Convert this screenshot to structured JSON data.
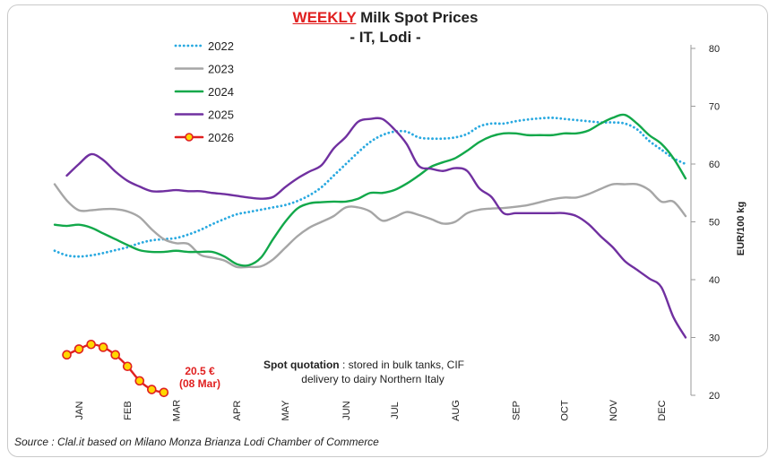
{
  "header": {
    "title_emph": "WEEKLY",
    "title_rest": " Milk Spot Prices",
    "subtitle": "- IT, Lodi -"
  },
  "source": "Source : Clal.it based on Milano Monza Brianza Lodi Chamber of Commerce",
  "annotations": {
    "spot_bold": "Spot quotation",
    "spot_rest": " : stored in bulk tanks, CIF",
    "spot_line2": "delivery to dairy Northern Italy",
    "last_value": "20.5 €",
    "last_date": "(08 Mar)"
  },
  "colors": {
    "2022": "#29a9e0",
    "2023": "#a6a6a6",
    "2024": "#12a84a",
    "2025": "#7030a0",
    "2026": "#e02020",
    "2026_marker_fill": "#ffd700",
    "annotation_red": "#e02020"
  },
  "chart_data": {
    "type": "line",
    "title": "WEEKLY Milk Spot Prices - IT, Lodi -",
    "ylabel": "EUR/100 kg",
    "ylim": [
      20,
      80
    ],
    "yticks": [
      20,
      30,
      40,
      50,
      60,
      70,
      80
    ],
    "y_axis_position": "right",
    "xlim": [
      0,
      52
    ],
    "x_tick_labels": [
      "JAN",
      "FEB",
      "MAR",
      "APR",
      "MAY",
      "JUN",
      "JUL",
      "AUG",
      "SEP",
      "OCT",
      "NOV",
      "DEC"
    ],
    "x_tick_weeks": [
      2,
      6,
      10,
      15,
      19,
      24,
      28,
      33,
      38,
      42,
      46,
      50
    ],
    "legend_position": "top-left",
    "grid": false,
    "series": [
      {
        "name": "2022",
        "style": "dotted",
        "x": [
          0,
          1,
          2,
          3,
          4,
          5,
          6,
          7,
          8,
          9,
          10,
          11,
          12,
          13,
          14,
          15,
          16,
          17,
          18,
          19,
          20,
          21,
          22,
          23,
          24,
          25,
          26,
          27,
          28,
          29,
          30,
          31,
          32,
          33,
          34,
          35,
          36,
          37,
          38,
          39,
          40,
          41,
          42,
          43,
          44,
          45,
          46,
          47,
          48,
          49,
          50,
          51,
          52
        ],
        "y": [
          45,
          44.2,
          44,
          44.2,
          44.6,
          45.1,
          45.6,
          46.3,
          46.8,
          47,
          47.2,
          47.8,
          48.6,
          49.6,
          50.5,
          51.3,
          51.7,
          52.1,
          52.5,
          52.9,
          53.6,
          54.6,
          56,
          58,
          60,
          62,
          63.8,
          65,
          65.6,
          65.6,
          64.6,
          64.4,
          64.4,
          64.6,
          65.2,
          66.5,
          67,
          67,
          67.4,
          67.7,
          67.9,
          68,
          67.8,
          67.6,
          67.4,
          67.2,
          67.2,
          67,
          66,
          64,
          62.5,
          61,
          60
        ]
      },
      {
        "name": "2023",
        "style": "solid",
        "x": [
          0,
          1,
          2,
          3,
          4,
          5,
          6,
          7,
          8,
          9,
          10,
          11,
          12,
          13,
          14,
          15,
          16,
          17,
          18,
          19,
          20,
          21,
          22,
          23,
          24,
          25,
          26,
          27,
          28,
          29,
          30,
          31,
          32,
          33,
          34,
          35,
          36,
          37,
          38,
          39,
          40,
          41,
          42,
          43,
          44,
          45,
          46,
          47,
          48,
          49,
          50,
          51,
          52
        ],
        "y": [
          56.5,
          53.7,
          52,
          52,
          52.2,
          52.2,
          51.8,
          50.8,
          48.7,
          47,
          46.3,
          46.2,
          44.3,
          43.8,
          43.3,
          42.2,
          42.2,
          42.3,
          43.5,
          45.5,
          47.5,
          49,
          50,
          51,
          52.5,
          52.5,
          51.8,
          50.2,
          50.8,
          51.7,
          51.2,
          50.5,
          49.7,
          50,
          51.5,
          52.1,
          52.3,
          52.4,
          52.6,
          52.9,
          53.4,
          53.9,
          54.2,
          54.2,
          54.8,
          55.7,
          56.5,
          56.5,
          56.5,
          55.5,
          53.5,
          53.5,
          51
        ]
      },
      {
        "name": "2024",
        "style": "solid",
        "x": [
          0,
          1,
          2,
          3,
          4,
          5,
          6,
          7,
          8,
          9,
          10,
          11,
          12,
          13,
          14,
          15,
          16,
          17,
          18,
          19,
          20,
          21,
          22,
          23,
          24,
          25,
          26,
          27,
          28,
          29,
          30,
          31,
          32,
          33,
          34,
          35,
          36,
          37,
          38,
          39,
          40,
          41,
          42,
          43,
          44,
          45,
          46,
          47,
          48,
          49,
          50,
          51,
          52
        ],
        "y": [
          49.5,
          49.3,
          49.5,
          49,
          48,
          47,
          46,
          45.1,
          44.8,
          44.8,
          45,
          44.8,
          44.8,
          44.8,
          44,
          42.7,
          42.5,
          43.8,
          47,
          50,
          52.3,
          53.2,
          53.4,
          53.5,
          53.5,
          54,
          55,
          55,
          55.5,
          56.6,
          58,
          59.5,
          60.3,
          61,
          62.3,
          63.8,
          64.8,
          65.3,
          65.3,
          65,
          65,
          65,
          65.3,
          65.3,
          65.8,
          67,
          68,
          68.5,
          67,
          65,
          63.5,
          61,
          57.5
        ]
      },
      {
        "name": "2025",
        "style": "solid",
        "x": [
          1,
          2,
          3,
          4,
          5,
          6,
          7,
          8,
          9,
          10,
          11,
          12,
          13,
          14,
          15,
          16,
          17,
          18,
          19,
          20,
          21,
          22,
          23,
          24,
          25,
          26,
          27,
          28,
          29,
          30,
          31,
          32,
          33,
          34,
          35,
          36,
          37,
          38,
          39,
          40,
          41,
          42,
          43,
          44,
          45,
          46,
          47,
          48,
          49,
          50,
          51,
          52
        ],
        "y": [
          58,
          60,
          61.7,
          60.7,
          58.7,
          57.1,
          56.1,
          55.3,
          55.3,
          55.5,
          55.3,
          55.3,
          55,
          54.8,
          54.5,
          54.2,
          54,
          54.3,
          56,
          57.5,
          58.7,
          59.8,
          62.7,
          64.7,
          67.3,
          67.8,
          67.8,
          66,
          63.5,
          59.7,
          59.2,
          58.8,
          59.3,
          58.8,
          55.8,
          54.3,
          51.5,
          51.5,
          51.5,
          51.5,
          51.5,
          51.5,
          51,
          49.6,
          47.5,
          45.6,
          43.2,
          41.7,
          40.2,
          38.7,
          33.5,
          30
        ]
      },
      {
        "name": "2026",
        "style": "solid-marker",
        "x": [
          1,
          2,
          3,
          4,
          5,
          6,
          7,
          8,
          9
        ],
        "y": [
          27,
          28,
          28.8,
          28.3,
          27,
          25,
          22.5,
          21,
          20.5
        ]
      }
    ]
  }
}
